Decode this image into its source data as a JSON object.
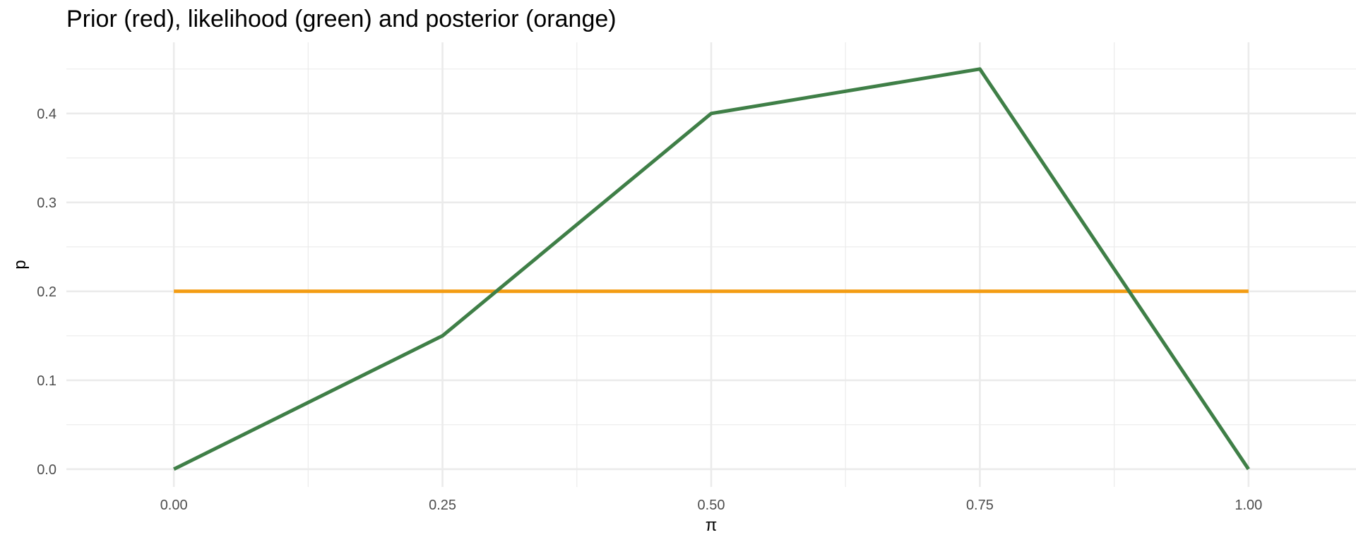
{
  "chart_data": {
    "type": "line",
    "title": "Prior (red), likelihood (green) and posterior (orange)",
    "xlabel": "π",
    "ylabel": "p",
    "xlim": [
      -0.1,
      1.1
    ],
    "ylim": [
      -0.02,
      0.48
    ],
    "x_ticks": [
      0.0,
      0.25,
      0.5,
      0.75,
      1.0
    ],
    "x_tick_labels": [
      "0.00",
      "0.25",
      "0.50",
      "0.75",
      "1.00"
    ],
    "x_minor_ticks": [
      0.125,
      0.375,
      0.625,
      0.875
    ],
    "y_ticks": [
      0.0,
      0.1,
      0.2,
      0.3,
      0.4
    ],
    "y_tick_labels": [
      "0.0",
      "0.1",
      "0.2",
      "0.3",
      "0.4"
    ],
    "y_minor_ticks": [
      0.05,
      0.15,
      0.25,
      0.35,
      0.45
    ],
    "grid": true,
    "series": [
      {
        "color": "#f39c12",
        "x": [
          0.0,
          0.25,
          0.5,
          0.75,
          1.0
        ],
        "y": [
          0.2,
          0.2,
          0.2,
          0.2,
          0.2
        ]
      },
      {
        "color": "#3f7f47",
        "x": [
          0.0,
          0.25,
          0.5,
          0.75,
          1.0
        ],
        "y": [
          0.0,
          0.15,
          0.4,
          0.45,
          0.0
        ]
      }
    ]
  }
}
